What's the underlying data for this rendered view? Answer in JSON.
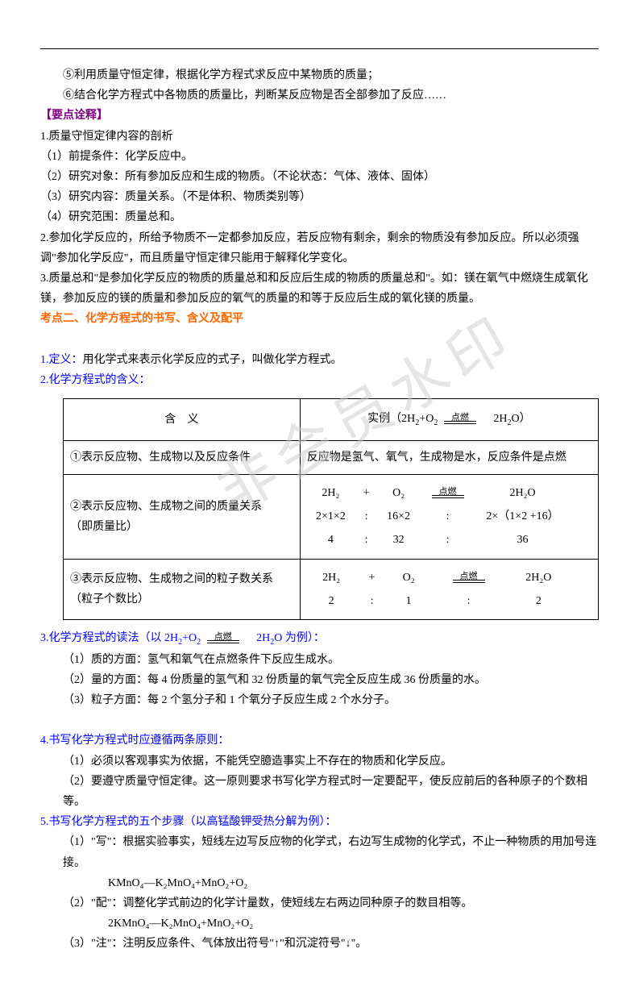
{
  "intro": {
    "l1": "⑤利用质量守恒定律，根据化学方程式求反应中某物质的质量；",
    "l2": "⑥结合化学方程式中各物质的质量比，判断某反应物是否全部参加了反应……"
  },
  "header1": "【要点诠释】",
  "sec1": {
    "title": "1.质量守恒定律内容的剖析",
    "p1": "（1）前提条件：化学反应中。",
    "p2": "（2）研究对象：所有参加反应和生成的物质。（不论状态：气体、液体、固体）",
    "p3": "（3）研究内容：质量关系。（不是体积、物质类别等）",
    "p4": "（4）研究范围：质量总和。"
  },
  "sec2": "2.参加化学反应的，所给予物质不一定都参加反应，若反应物有剩余，剩余的物质没有参加反应。所以必须强调\"参加化学反应\"，而且质量守恒定律只能用于解释化学变化。",
  "sec3": "3.质量总和\"是参加化学反应的物质的质量总和和反应后生成的物质的质量总和\"。如：镁在氧气中燃烧生成氧化镁，参加反应的镁的质量和参加反应的氧气的质量的和等于反应后生成的氧化镁的质量。",
  "topic2": "考点二、化学方程式的书写、含义及配平",
  "def1": {
    "label": "1.定义：",
    "text": "用化学式来表示化学反应的式子，叫做化学方程式。"
  },
  "def2": "2.化学方程式的含义：",
  "table": {
    "h1": "含　义",
    "h2_prefix": "实例（2H",
    "h2_mid1": "+O",
    "h2_arrow": "点燃",
    "h2_suffix": "　2H",
    "h2_end": "O）",
    "r1c1": "①表示反应物、生成物以及反应条件",
    "r1c2": "反应物是氢气、氧气，生成物是水，反应条件是点燃",
    "r2c1a": "②表示反应物、生成物之间的质量关系",
    "r2c1b": "（即质量比）",
    "r2": {
      "arrow": "点燃",
      "row1": [
        "2H₂",
        "+",
        "O₂",
        "",
        "2H₂O"
      ],
      "row2": [
        "2×1×2",
        ":",
        "16×2",
        ":",
        "2×（1×2 +16）"
      ],
      "row3": [
        "4",
        ":",
        "32",
        ":",
        "36"
      ]
    },
    "r3c1a": "③表示反应物、生成物之间的粒子数关系",
    "r3c1b": "（粒子个数比）",
    "r3": {
      "arrow": "点燃",
      "row1": [
        "2H₂",
        "+",
        "O₂",
        "",
        "2H₂O"
      ],
      "row2": [
        "2",
        ":",
        "1",
        ":",
        "2"
      ]
    }
  },
  "sec3b": {
    "title_p1": "3.化学方程式的读法（以 2H",
    "title_p2": "+O",
    "arrow": "点燃",
    "title_p3": "　2H",
    "title_p4": "O 为例）：",
    "p1": "（1）质的方面：氢气和氧气在点燃条件下反应生成水。",
    "p2": "（2）量的方面：每 4 份质量的氢气和 32 份质量的氧气完全反应生成 36 份质量的水。",
    "p3": "（3）粒子方面：每 2 个氢分子和 1 个氧分子反应生成 2 个水分子。"
  },
  "sec4": {
    "title": "4.书写化学方程式时应遵循两条原则：",
    "p1": "（1）必须以客观事实为依据，不能凭空臆造事实上不存在的物质和化学反应。",
    "p2": "（2）要遵守质量守恒定律。这一原则要求书写化学方程式时一定要配平，使反应前后的各种原子的个数相等。"
  },
  "sec5": {
    "title": "5.书写化学方程式的五个步骤（以高锰酸钾受热分解为例）：",
    "p1": "（1）\"写\"：根据实验事实，短线左边写反应物的化学式，右边写生成物的化学式，不止一种物质的用加号连接。",
    "f1": "KMnO₄—K₂MnO₄+MnO₂+O₂",
    "p2": "（2）\"配\"：调整化学式前边的化学计量数，使短线左右两边同种原子的数目相等。",
    "f2": "2KMnO₄—K₂MnO₄+MnO₂+O₂",
    "p3": "（3）\"注\"：注明反应条件、气体放出符号\"↑\"和沉淀符号\"↓\"。"
  },
  "watermark": "非会员水印"
}
